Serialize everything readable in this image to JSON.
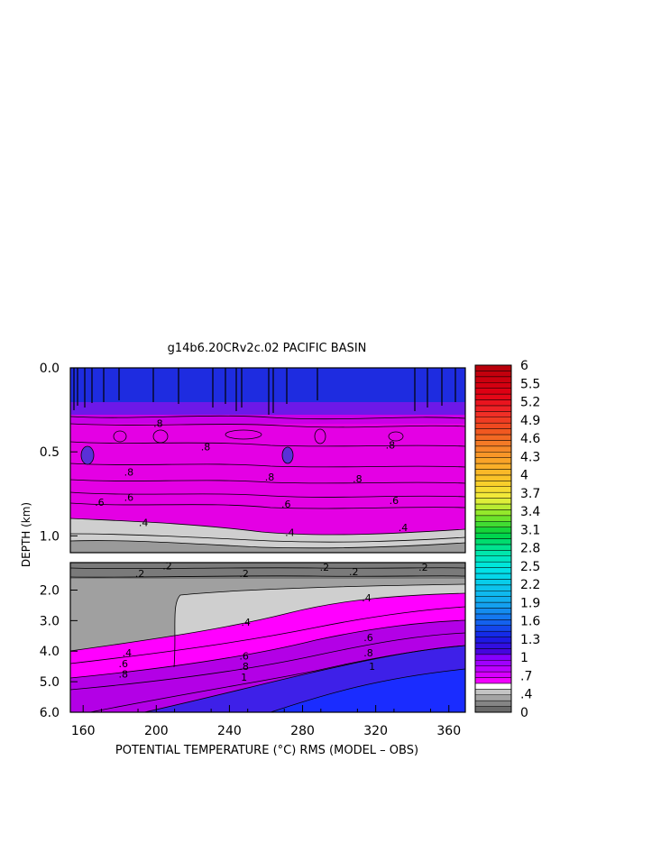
{
  "chart_data": {
    "type": "heatmap",
    "title": "g14b6.20CRv2c.02 PACIFIC BASIN",
    "xlabel": "POTENTIAL TEMPERATURE (°C) RMS (MODEL – OBS)",
    "ylabel": "DEPTH (km)",
    "x_tick_labels": [
      "160",
      "200",
      "240",
      "280",
      "320",
      "360"
    ],
    "x_ticks": [
      160,
      200,
      240,
      280,
      320,
      360
    ],
    "xlim": [
      153,
      369
    ],
    "upper_panel": {
      "ylim": [
        0.0,
        1.1
      ],
      "y_ticks": [
        0.0,
        0.5,
        1.0
      ],
      "y_tick_labels": [
        "0.0",
        "0.5",
        "1.0"
      ]
    },
    "lower_panel": {
      "ylim": [
        1.1,
        6.0
      ],
      "y_ticks": [
        2.0,
        3.0,
        4.0,
        5.0,
        6.0
      ],
      "y_tick_labels": [
        "2.0",
        "3.0",
        "4.0",
        "5.0",
        "6.0"
      ]
    },
    "colorbar": {
      "labels": [
        "6",
        "5.5",
        "5.2",
        "4.9",
        "4.6",
        "4.3",
        "4",
        "3.7",
        "3.4",
        "3.1",
        "2.8",
        "2.5",
        "2.2",
        "1.9",
        "1.6",
        "1.3",
        "1",
        ".7",
        ".4",
        "0"
      ],
      "levels": [
        0,
        0.1,
        0.2,
        0.3,
        0.4,
        0.5,
        0.6,
        0.7,
        0.8,
        0.9,
        1.0,
        1.1,
        1.2,
        1.3,
        1.4,
        1.5,
        1.6,
        1.7,
        1.8,
        1.9,
        2.0,
        2.1,
        2.2,
        2.3,
        2.4,
        2.5,
        2.6,
        2.7,
        2.8,
        2.9,
        3.0,
        3.1,
        3.2,
        3.3,
        3.4,
        3.5,
        3.6,
        3.7,
        3.8,
        3.9,
        4.0,
        4.1,
        4.2,
        4.3,
        4.4,
        4.5,
        4.6,
        4.7,
        4.8,
        4.9,
        5.0,
        5.1,
        5.2,
        5.3,
        5.4,
        5.5,
        5.6,
        5.7,
        5.8,
        5.9,
        6.0
      ]
    },
    "contour_labels": {
      "upper": [
        {
          "x": 201,
          "y": 0.33,
          "text": ".8"
        },
        {
          "x": 227,
          "y": 0.47,
          "text": ".8"
        },
        {
          "x": 328,
          "y": 0.46,
          "text": ".8"
        },
        {
          "x": 185,
          "y": 0.62,
          "text": ".8"
        },
        {
          "x": 262,
          "y": 0.65,
          "text": ".8"
        },
        {
          "x": 310,
          "y": 0.66,
          "text": ".8"
        },
        {
          "x": 185,
          "y": 0.77,
          "text": ".6"
        },
        {
          "x": 271,
          "y": 0.81,
          "text": ".6"
        },
        {
          "x": 330,
          "y": 0.79,
          "text": ".6"
        },
        {
          "x": 169,
          "y": 0.8,
          "text": ".6"
        },
        {
          "x": 193,
          "y": 0.92,
          "text": ".4"
        },
        {
          "x": 273,
          "y": 0.98,
          "text": ".4"
        },
        {
          "x": 335,
          "y": 0.95,
          "text": ".4"
        }
      ],
      "lower": [
        {
          "x": 191,
          "y": 1.45,
          "text": ".2"
        },
        {
          "x": 206,
          "y": 1.2,
          "text": ".2"
        },
        {
          "x": 248,
          "y": 1.45,
          "text": ".2"
        },
        {
          "x": 292,
          "y": 1.25,
          "text": ".2"
        },
        {
          "x": 308,
          "y": 1.4,
          "text": ".2"
        },
        {
          "x": 346,
          "y": 1.25,
          "text": ".2"
        },
        {
          "x": 249,
          "y": 3.05,
          "text": ".4"
        },
        {
          "x": 315,
          "y": 2.25,
          "text": ".4"
        },
        {
          "x": 184,
          "y": 4.05,
          "text": ".4"
        },
        {
          "x": 248,
          "y": 4.15,
          "text": ".6"
        },
        {
          "x": 316,
          "y": 3.55,
          "text": ".6"
        },
        {
          "x": 182,
          "y": 4.4,
          "text": ".6"
        },
        {
          "x": 248,
          "y": 4.5,
          "text": ".8"
        },
        {
          "x": 316,
          "y": 4.05,
          "text": ".8"
        },
        {
          "x": 182,
          "y": 4.75,
          "text": ".8"
        },
        {
          "x": 248,
          "y": 4.85,
          "text": "1"
        },
        {
          "x": 318,
          "y": 4.5,
          "text": "1"
        }
      ]
    }
  }
}
